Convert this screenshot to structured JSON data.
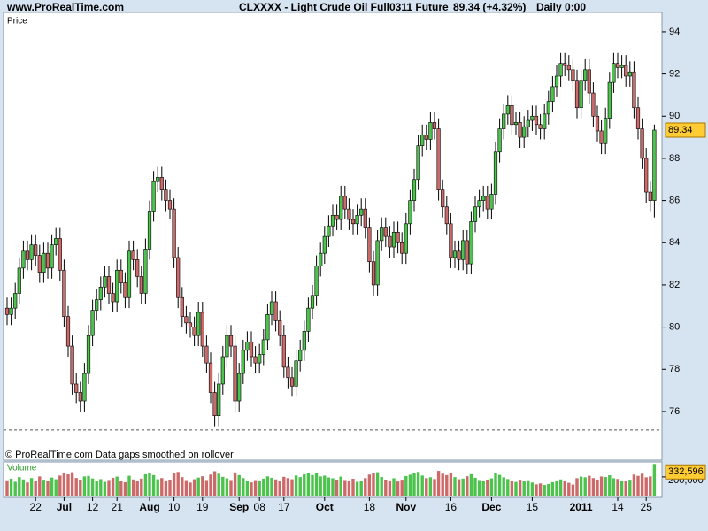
{
  "chart_data": {
    "type": "candlestick",
    "site": "www.ProRealTime.com",
    "title": "CLXXXX - Light Crude Oil Full0311 Future",
    "quote": "89.34 (+4.32%)",
    "period": "Daily  0:00",
    "panel_label": "Price",
    "footnote": "© ProRealTime.com  Data gaps smoothed on rollover",
    "up_color": "#4cc34c",
    "down_color": "#cc6a6a",
    "price_box_color": "#ffcc33",
    "ylim": [
      73.69,
      94.92
    ],
    "yticks": [
      76,
      78,
      80,
      82,
      84,
      86,
      88,
      90,
      92,
      94
    ],
    "reference_line": 75.12,
    "categories": [
      null,
      null,
      null,
      null,
      null,
      null,
      null,
      "22",
      null,
      null,
      null,
      null,
      null,
      null,
      "Jul",
      null,
      null,
      null,
      null,
      null,
      null,
      "12",
      null,
      null,
      null,
      null,
      null,
      "21",
      null,
      null,
      null,
      null,
      null,
      null,
      null,
      "Aug",
      null,
      null,
      null,
      null,
      null,
      "10",
      null,
      null,
      null,
      null,
      null,
      null,
      "19",
      null,
      null,
      null,
      null,
      null,
      null,
      null,
      null,
      "Sep",
      null,
      null,
      null,
      null,
      "08",
      null,
      null,
      null,
      null,
      null,
      "17",
      null,
      null,
      null,
      null,
      null,
      null,
      null,
      null,
      null,
      "Oct",
      null,
      null,
      null,
      null,
      null,
      null,
      null,
      null,
      null,
      null,
      "18",
      null,
      null,
      null,
      null,
      null,
      null,
      null,
      null,
      "Nov",
      null,
      null,
      null,
      null,
      null,
      null,
      null,
      null,
      null,
      null,
      "16",
      null,
      null,
      null,
      null,
      null,
      null,
      null,
      null,
      null,
      "Dec",
      null,
      null,
      null,
      null,
      null,
      null,
      null,
      null,
      null,
      "15",
      null,
      null,
      null,
      null,
      null,
      null,
      null,
      null,
      null,
      null,
      null,
      "2011",
      null,
      null,
      null,
      null,
      null,
      null,
      null,
      null,
      "14",
      null,
      null,
      null,
      null,
      null,
      null,
      "25",
      null,
      null
    ],
    "open": [
      80.9,
      80.6,
      80.9,
      81.6,
      82.8,
      83.6,
      83.2,
      83.9,
      83.4,
      82.6,
      83.5,
      82.8,
      83.9,
      84.2,
      82.7,
      80.5,
      79.1,
      77.3,
      76.9,
      76.5,
      77.8,
      79.6,
      80.8,
      81.3,
      81.9,
      82.4,
      81.6,
      81.2,
      82.7,
      82.1,
      81.4,
      83.6,
      83.2,
      82.4,
      81.6,
      83.7,
      85.5,
      86.9,
      87.1,
      86.5,
      86.0,
      85.6,
      83.3,
      81.4,
      80.5,
      80.2,
      80.0,
      79.6,
      80.7,
      79.1,
      78.3,
      76.9,
      75.8,
      77.3,
      78.6,
      79.6,
      79.1,
      76.5,
      77.8,
      78.9,
      79.3,
      78.6,
      78.3,
      78.7,
      79.4,
      80.6,
      81.2,
      80.3,
      79.6,
      78.1,
      77.6,
      77.2,
      78.4,
      78.9,
      79.8,
      80.9,
      81.5,
      82.9,
      83.5,
      84.3,
      84.8,
      85.3,
      85.1,
      86.2,
      85.6,
      85.1,
      84.9,
      85.3,
      85.6,
      84.7,
      83.1,
      82.0,
      84.1,
      84.7,
      84.3,
      83.8,
      84.5,
      84.0,
      83.5,
      84.9,
      86.0,
      87.0,
      88.6,
      89.1,
      88.9,
      89.7,
      89.4,
      86.5,
      85.7,
      84.9,
      83.3,
      83.6,
      83.2,
      84.1,
      83.0,
      85.0,
      85.7,
      86.0,
      86.2,
      85.6,
      86.3,
      88.3,
      89.4,
      90.1,
      90.5,
      89.6,
      89.7,
      89.0,
      89.5,
      89.8,
      90.0,
      89.6,
      89.4,
      90.1,
      90.7,
      91.4,
      91.9,
      92.5,
      92.4,
      92.2,
      91.7,
      90.4,
      91.7,
      92.2,
      91.1,
      90.0,
      89.3,
      88.7,
      89.9,
      91.6,
      92.5,
      92.3,
      92.4,
      91.9,
      92.1,
      90.4,
      89.4,
      88.0,
      86.4,
      86.0
    ],
    "high": [
      81.4,
      81.4,
      82.1,
      83.3,
      84.1,
      84.1,
      84.4,
      84.4,
      83.9,
      84.0,
      84.0,
      84.4,
      84.7,
      84.7,
      83.2,
      81.0,
      79.6,
      77.8,
      77.4,
      78.3,
      80.1,
      81.3,
      81.8,
      82.4,
      82.9,
      82.9,
      82.1,
      83.2,
      83.2,
      82.6,
      84.1,
      84.1,
      83.7,
      82.9,
      84.2,
      86.0,
      87.4,
      87.6,
      87.6,
      87.0,
      86.5,
      86.1,
      83.8,
      81.9,
      81.0,
      80.7,
      80.5,
      81.2,
      81.2,
      79.6,
      78.8,
      77.4,
      77.8,
      79.1,
      80.1,
      80.1,
      79.6,
      78.3,
      79.4,
      79.8,
      79.8,
      79.1,
      79.2,
      79.9,
      81.1,
      81.7,
      81.7,
      80.8,
      80.1,
      78.6,
      78.1,
      78.9,
      79.4,
      80.3,
      81.4,
      82.0,
      83.4,
      84.0,
      84.8,
      85.3,
      85.8,
      85.8,
      86.7,
      86.7,
      86.1,
      85.6,
      85.8,
      86.1,
      86.1,
      85.2,
      83.6,
      84.6,
      85.2,
      85.2,
      84.8,
      85.0,
      85.0,
      84.5,
      85.4,
      86.5,
      87.5,
      89.1,
      89.6,
      89.6,
      90.2,
      90.2,
      89.9,
      87.0,
      86.2,
      85.4,
      84.1,
      84.1,
      84.6,
      84.6,
      85.5,
      86.2,
      86.5,
      86.7,
      86.7,
      86.8,
      88.8,
      89.9,
      90.6,
      91.0,
      91.0,
      90.2,
      90.2,
      90.0,
      90.3,
      90.5,
      90.5,
      90.1,
      90.6,
      91.2,
      91.9,
      92.4,
      93.0,
      93.0,
      92.9,
      92.7,
      92.2,
      92.2,
      92.7,
      92.7,
      91.6,
      90.5,
      89.8,
      90.4,
      92.1,
      93.0,
      93.0,
      92.9,
      92.9,
      92.6,
      92.6,
      90.9,
      89.9,
      88.5,
      86.9,
      89.6
    ],
    "low": [
      80.1,
      80.1,
      80.4,
      81.1,
      82.3,
      82.7,
      82.7,
      82.9,
      82.1,
      82.1,
      82.3,
      82.3,
      83.4,
      82.2,
      80.0,
      78.6,
      76.8,
      76.4,
      76.0,
      76.0,
      77.3,
      79.1,
      80.3,
      80.8,
      81.4,
      81.1,
      80.7,
      80.7,
      81.6,
      80.9,
      80.9,
      82.7,
      81.9,
      81.1,
      81.1,
      83.2,
      85.0,
      86.4,
      86.0,
      85.5,
      85.1,
      82.8,
      80.9,
      80.0,
      79.7,
      79.5,
      79.1,
      79.1,
      78.6,
      77.8,
      76.4,
      75.3,
      75.3,
      76.8,
      78.1,
      78.6,
      76.0,
      76.0,
      77.3,
      78.4,
      78.1,
      77.8,
      77.8,
      78.2,
      78.9,
      80.1,
      79.8,
      79.1,
      77.6,
      77.1,
      76.7,
      76.7,
      77.9,
      78.4,
      79.3,
      80.4,
      81.0,
      82.4,
      83.0,
      83.8,
      84.3,
      84.6,
      84.6,
      85.1,
      84.6,
      84.4,
      84.4,
      84.8,
      84.2,
      82.6,
      81.5,
      81.5,
      83.6,
      83.8,
      83.3,
      83.3,
      83.5,
      83.0,
      83.0,
      84.4,
      85.5,
      86.5,
      88.1,
      88.4,
      88.4,
      88.9,
      86.0,
      85.2,
      84.4,
      82.8,
      82.8,
      82.7,
      82.7,
      82.5,
      82.5,
      84.5,
      85.2,
      85.5,
      85.1,
      85.1,
      85.8,
      87.8,
      88.9,
      89.6,
      89.1,
      89.1,
      88.5,
      88.5,
      89.0,
      89.3,
      89.1,
      88.9,
      88.9,
      89.6,
      90.2,
      90.9,
      91.4,
      91.9,
      91.7,
      91.2,
      89.9,
      89.9,
      91.2,
      90.6,
      89.5,
      88.8,
      88.2,
      88.2,
      89.4,
      91.1,
      91.8,
      91.8,
      91.4,
      91.4,
      89.9,
      88.9,
      87.5,
      85.9,
      85.5,
      85.2
    ],
    "close": [
      80.6,
      80.9,
      81.6,
      82.8,
      83.6,
      83.2,
      83.9,
      83.4,
      82.6,
      83.5,
      82.8,
      83.9,
      84.2,
      82.7,
      80.5,
      79.1,
      77.3,
      76.9,
      76.5,
      77.8,
      79.6,
      80.8,
      81.3,
      81.9,
      82.4,
      81.6,
      81.2,
      82.7,
      82.1,
      81.4,
      83.6,
      83.2,
      82.4,
      81.6,
      83.7,
      85.5,
      86.9,
      87.1,
      86.5,
      86.0,
      85.6,
      83.3,
      81.4,
      80.5,
      80.2,
      80.0,
      79.6,
      80.7,
      79.1,
      78.3,
      76.9,
      75.8,
      77.3,
      78.6,
      79.6,
      79.1,
      76.5,
      77.8,
      78.9,
      79.3,
      78.6,
      78.3,
      78.7,
      79.4,
      80.6,
      81.2,
      80.3,
      79.6,
      78.1,
      77.6,
      77.2,
      78.4,
      78.9,
      79.8,
      80.9,
      81.5,
      82.9,
      83.5,
      84.3,
      84.8,
      85.3,
      85.1,
      86.2,
      85.6,
      85.1,
      84.9,
      85.3,
      85.6,
      84.7,
      83.1,
      82.0,
      84.1,
      84.7,
      84.3,
      83.8,
      84.5,
      84.0,
      83.5,
      84.9,
      86.0,
      87.0,
      88.6,
      89.1,
      88.9,
      89.7,
      89.4,
      86.5,
      85.7,
      84.9,
      83.3,
      83.6,
      83.2,
      84.1,
      83.0,
      85.0,
      85.7,
      86.0,
      86.2,
      85.6,
      86.3,
      88.3,
      89.4,
      90.1,
      90.5,
      89.6,
      89.7,
      89.0,
      89.5,
      89.8,
      90.0,
      89.6,
      89.4,
      90.1,
      90.7,
      91.4,
      91.9,
      92.5,
      92.4,
      92.2,
      91.7,
      90.4,
      91.7,
      92.2,
      91.1,
      90.0,
      89.3,
      88.7,
      89.9,
      91.6,
      92.5,
      92.3,
      92.4,
      91.9,
      92.1,
      90.4,
      89.4,
      88.0,
      86.4,
      86.0,
      89.34
    ],
    "volume": {
      "name": "Volume",
      "vlim": [
        0,
        335000
      ],
      "ticks": [
        {
          "value": 200000,
          "label": "200,000"
        }
      ],
      "last_label": "332,596",
      "values": [
        165000,
        182000,
        150000,
        198000,
        174000,
        143000,
        188000,
        162000,
        205000,
        171000,
        158000,
        193000,
        176000,
        214000,
        237000,
        226000,
        248000,
        189000,
        172000,
        205000,
        210000,
        184000,
        160000,
        177000,
        149000,
        168000,
        191000,
        203000,
        158000,
        146000,
        212000,
        174000,
        162000,
        183000,
        227000,
        241000,
        219000,
        176000,
        188000,
        164000,
        172000,
        236000,
        251000,
        198000,
        167000,
        142000,
        176000,
        193000,
        207000,
        168000,
        224000,
        258000,
        233000,
        201000,
        185000,
        168000,
        246000,
        219000,
        188000,
        154000,
        143000,
        167000,
        158000,
        182000,
        206000,
        191000,
        174000,
        163000,
        201000,
        188000,
        176000,
        215000,
        198000,
        227000,
        242000,
        219000,
        236000,
        205000,
        213000,
        194000,
        186000,
        172000,
        203000,
        168000,
        158000,
        181000,
        149000,
        162000,
        187000,
        224000,
        236000,
        248000,
        199000,
        172000,
        164000,
        186000,
        153000,
        171000,
        209000,
        223000,
        238000,
        251000,
        214000,
        187000,
        196000,
        178000,
        262000,
        233000,
        219000,
        241000,
        198000,
        176000,
        183000,
        207000,
        228000,
        191000,
        168000,
        154000,
        172000,
        185000,
        239000,
        221000,
        196000,
        178000,
        163000,
        148000,
        171000,
        159000,
        166000,
        142000,
        124000,
        133000,
        118000,
        128000,
        146000,
        162000,
        174000,
        158000,
        139000,
        121000,
        187000,
        203000,
        196000,
        212000,
        188000,
        173000,
        204000,
        199000,
        217000,
        186000,
        179000,
        162000,
        158000,
        171000,
        224000,
        211000,
        233000,
        196000,
        205000,
        332596
      ]
    }
  }
}
